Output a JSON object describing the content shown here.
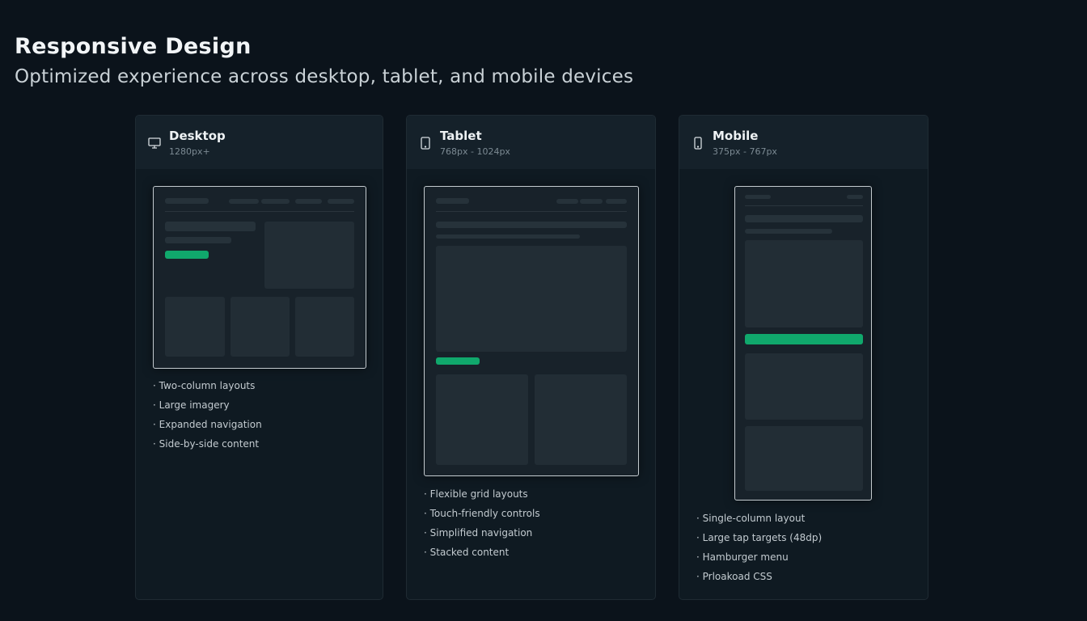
{
  "header": {
    "title": "Responsive Design",
    "subtitle": "Optimized experience across desktop, tablet, and mobile devices"
  },
  "colors": {
    "accent": "#10a86c",
    "background": "#0b131b",
    "card": "#0f1a22"
  },
  "cards": [
    {
      "icon": "monitor-icon",
      "title": "Desktop",
      "range": "1280px+",
      "features": [
        "Two-column layouts",
        "Large imagery",
        "Expanded navigation",
        "Side-by-side content"
      ]
    },
    {
      "icon": "tablet-icon",
      "title": "Tablet",
      "range": "768px - 1024px",
      "features": [
        "Flexible grid layouts",
        "Touch-friendly controls",
        "Simplified navigation",
        "Stacked content"
      ]
    },
    {
      "icon": "smartphone-icon",
      "title": "Mobile",
      "range": "375px - 767px",
      "features": [
        "Single-column layout",
        "Large tap targets (48dp)",
        "Hamburger menu",
        "Prloakoad CSS"
      ]
    }
  ]
}
